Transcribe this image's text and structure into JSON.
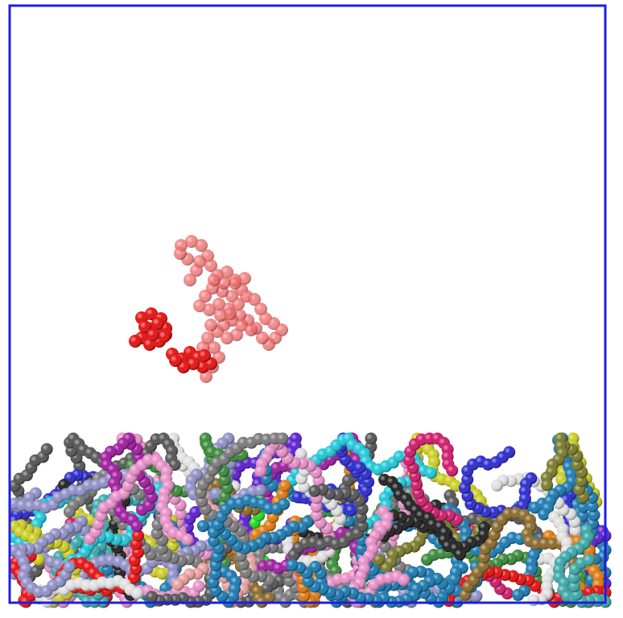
{
  "scene": {
    "kind": "molecular-dynamics-render",
    "background": "#ffffff",
    "box_color": "#1f1fdc",
    "free_chain_color": "#e81010",
    "free_chain_faded_color": "#f06060",
    "palette": [
      "#2a2acf",
      "#555555",
      "#7a7a7a",
      "#3aa8a8",
      "#a01ca0",
      "#e81010",
      "#22dd22",
      "#cccc22",
      "#e07a10",
      "#1fc8d8",
      "#e890c8",
      "#b0b0b0",
      "#8b6a2a",
      "#7a7a2a",
      "#5b1fd0",
      "#d01a6a",
      "#9090c8",
      "#3a8a3a",
      "#e0e0e0",
      "#202020",
      "#e8a0a0",
      "#1a7ab0"
    ]
  }
}
